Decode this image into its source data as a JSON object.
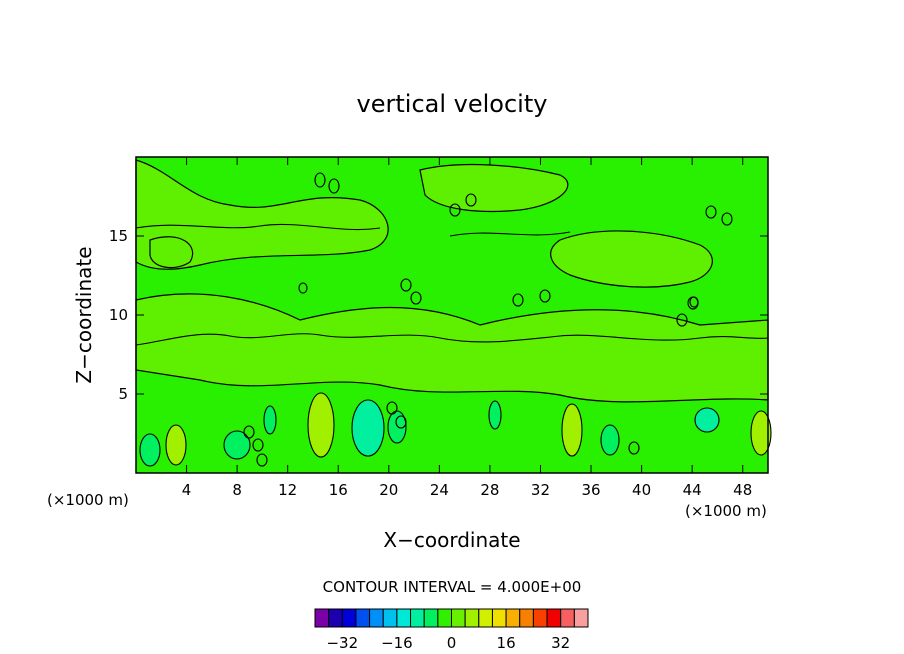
{
  "chart_data": {
    "type": "heatmap",
    "title": "vertical velocity",
    "xlabel": "X−coordinate",
    "ylabel": "Z−coordinate",
    "x_units_left": "(×1000 m)",
    "x_units_right": "(×1000 m)",
    "xlim": [
      0,
      50
    ],
    "ylim": [
      0,
      20
    ],
    "xticks": [
      4,
      8,
      12,
      16,
      20,
      24,
      28,
      32,
      36,
      40,
      44,
      48
    ],
    "yticks": [
      5,
      10,
      15
    ],
    "contour_interval_text": "CONTOUR INTERVAL = 4.000E+00",
    "colorbar": {
      "levels": [
        -36,
        -32,
        -28,
        -24,
        -20,
        -16,
        -12,
        -8,
        -4,
        0,
        4,
        8,
        12,
        16,
        20,
        24,
        28,
        32,
        36
      ],
      "colors": [
        "#7a00a8",
        "#1c00b0",
        "#0000d8",
        "#0050f0",
        "#0090f8",
        "#00c0f0",
        "#00e8d8",
        "#00f0a0",
        "#00f060",
        "#30f000",
        "#68f000",
        "#a0f000",
        "#d0f000",
        "#f0e000",
        "#f8b000",
        "#f88000",
        "#f84000",
        "#f00000",
        "#f86060",
        "#f8a0a0"
      ],
      "tick_labels": [
        "−32",
        "−16",
        "0",
        "16",
        "32"
      ],
      "tick_values": [
        -32,
        -16,
        0,
        16,
        32
      ]
    },
    "field_colors": {
      "background": "#28f000",
      "light_green": "#5ef000",
      "pale_green": "#00f060",
      "cyan_green": "#00f0a0",
      "yellow_green": "#a0f000"
    }
  }
}
